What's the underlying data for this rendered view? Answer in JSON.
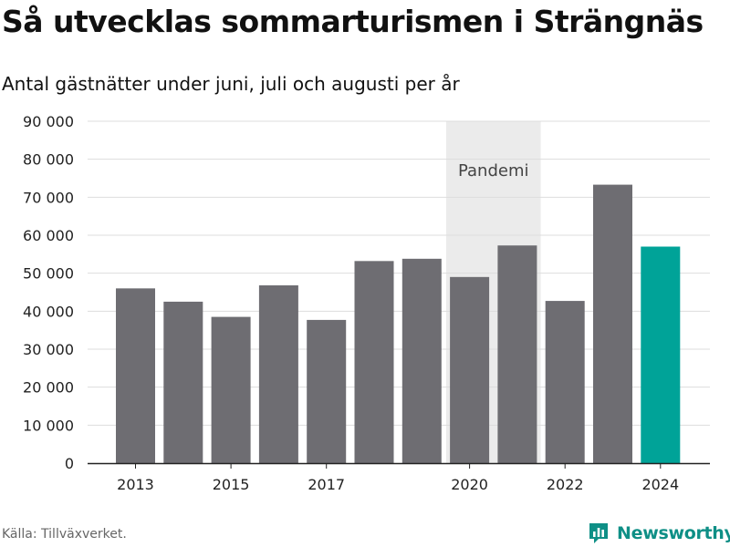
{
  "header": {
    "title": "Så utvecklas sommarturismen i Strängnäs",
    "subtitle": "Antal gästnätter under juni, juli och augusti per år"
  },
  "footer": {
    "source": "Källa: Tillväxverket.",
    "brand": "Newsworthy",
    "brand_icon": "newsworthy-logo-icon"
  },
  "colors": {
    "bar": "#6e6d72",
    "highlight": "#00a398",
    "band": "#ebebeb",
    "grid": "#dddddd",
    "brand": "#0e8f86"
  },
  "chart_data": {
    "type": "bar",
    "title": "Så utvecklas sommarturismen i Strängnäs",
    "subtitle": "Antal gästnätter under juni, juli och augusti per år",
    "categories": [
      "2013",
      "2014",
      "2015",
      "2016",
      "2017",
      "2018",
      "2019",
      "2020",
      "2021",
      "2022",
      "2023",
      "2024"
    ],
    "values": [
      46000,
      42500,
      38500,
      46800,
      37700,
      53200,
      53800,
      49000,
      57300,
      42700,
      73300,
      57000
    ],
    "x_tick_labels": [
      "2013",
      "2015",
      "2017",
      "2020",
      "2022",
      "2024"
    ],
    "y_ticks": [
      0,
      10000,
      20000,
      30000,
      40000,
      50000,
      60000,
      70000,
      80000,
      90000
    ],
    "y_tick_labels": [
      "0",
      "10 000",
      "20 000",
      "30 000",
      "40 000",
      "50 000",
      "60 000",
      "70 000",
      "80 000",
      "90 000"
    ],
    "ylim": [
      0,
      90000
    ],
    "grid": true,
    "highlighted_category": "2024",
    "annotation": {
      "label": "Pandemi",
      "from": "2020",
      "to": "2021"
    }
  }
}
